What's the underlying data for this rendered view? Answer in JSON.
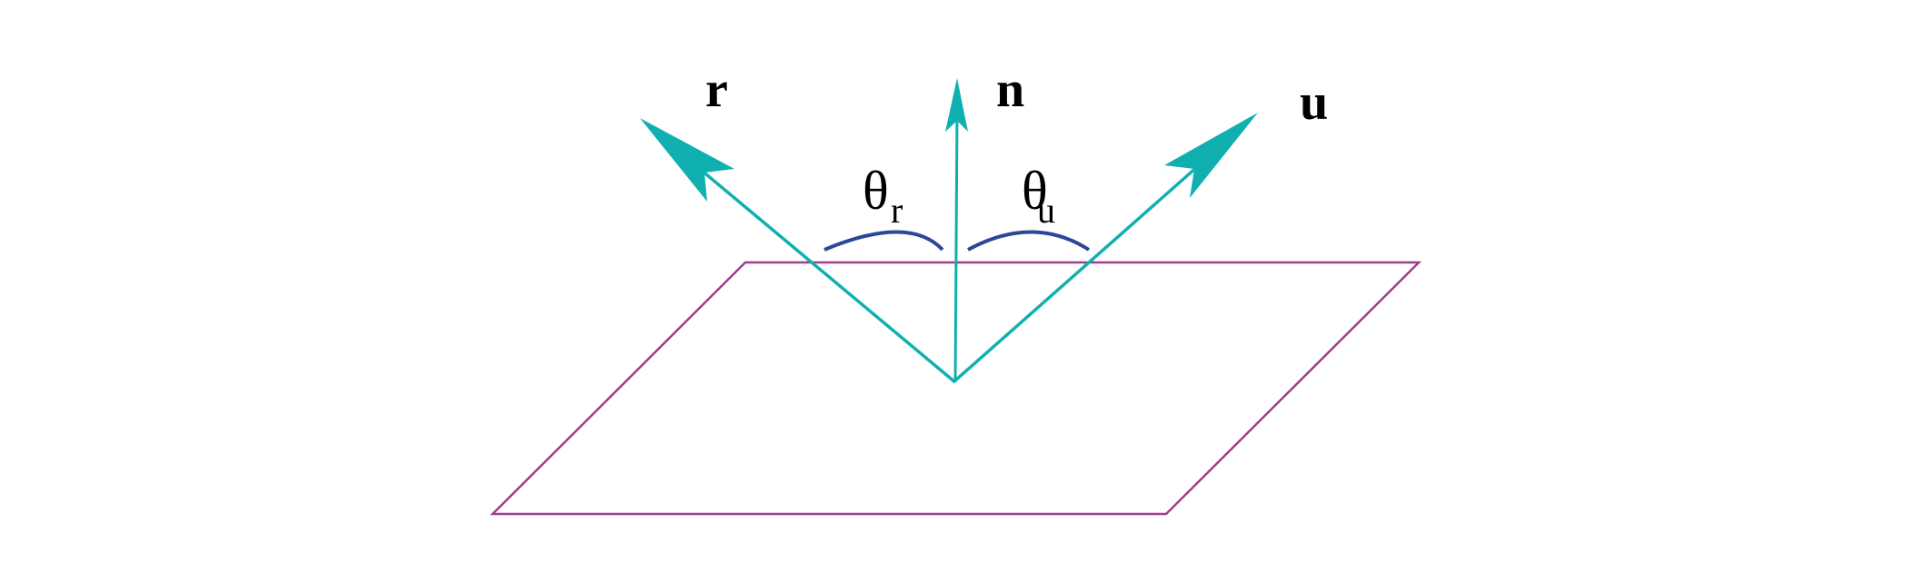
{
  "colors": {
    "plane": "#a03c8c",
    "vector": "#10b0b0",
    "arc": "#2b4797",
    "text": "#000000"
  },
  "labels": {
    "r": "r",
    "n": "n",
    "u": "u",
    "theta_symbol": "θ",
    "theta_r_sub": "r",
    "theta_u_sub": "u"
  }
}
